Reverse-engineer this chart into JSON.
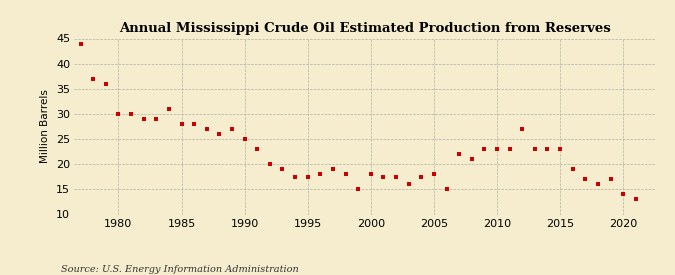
{
  "title": "Annual Mississippi Crude Oil Estimated Production from Reserves",
  "ylabel": "Million Barrels",
  "source": "Source: U.S. Energy Information Administration",
  "background_color": "#F5EDCD",
  "plot_bg_color": "#F5EDCD",
  "marker_color": "#CC0000",
  "grid_color": "#AAAAAA",
  "ylim": [
    10,
    45
  ],
  "yticks": [
    10,
    15,
    20,
    25,
    30,
    35,
    40,
    45
  ],
  "xlim": [
    1976.5,
    2022.5
  ],
  "xticks": [
    1980,
    1985,
    1990,
    1995,
    2000,
    2005,
    2010,
    2015,
    2020
  ],
  "data": {
    "1977": 44,
    "1978": 37,
    "1979": 36,
    "1980": 30,
    "1981": 30,
    "1982": 29,
    "1983": 29,
    "1984": 31,
    "1985": 28,
    "1986": 28,
    "1987": 27,
    "1988": 26,
    "1989": 27,
    "1990": 25,
    "1991": 23,
    "1992": 20,
    "1993": 19,
    "1994": 17.5,
    "1995": 17.5,
    "1996": 18,
    "1997": 19,
    "1998": 18,
    "1999": 15,
    "2000": 18,
    "2001": 17.5,
    "2002": 17.5,
    "2003": 16,
    "2004": 17.5,
    "2005": 18,
    "2006": 15,
    "2007": 22,
    "2008": 21,
    "2009": 23,
    "2010": 23,
    "2011": 23,
    "2012": 27,
    "2013": 23,
    "2014": 23,
    "2015": 23,
    "2016": 19,
    "2017": 17,
    "2018": 16,
    "2019": 17,
    "2020": 14,
    "2021": 13
  }
}
